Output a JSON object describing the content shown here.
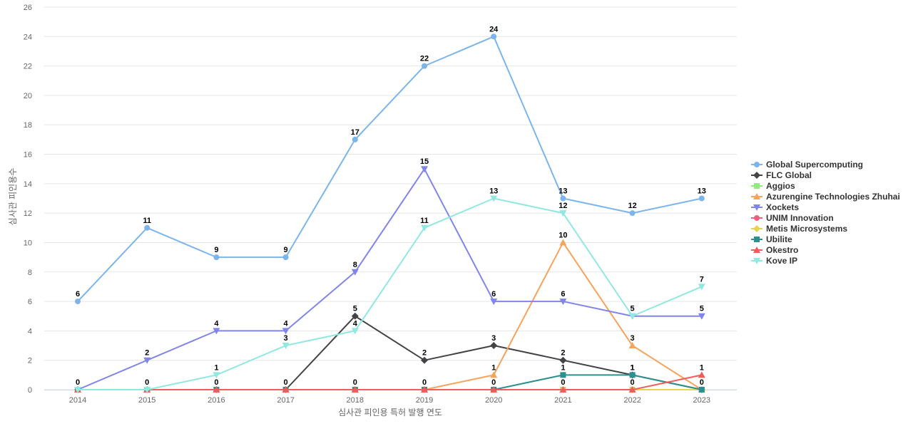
{
  "chart_data": {
    "type": "line",
    "title": "",
    "xlabel": "심사관 피인용 특허 발행 연도",
    "ylabel": "심사관 피인용수",
    "categories": [
      "2014",
      "2015",
      "2016",
      "2017",
      "2018",
      "2019",
      "2020",
      "2021",
      "2022",
      "2023"
    ],
    "ylim": [
      0,
      26
    ],
    "yticks": [
      0,
      2,
      4,
      6,
      8,
      10,
      12,
      14,
      16,
      18,
      20,
      22,
      24,
      26
    ],
    "grid": true,
    "legend_position": "right",
    "series": [
      {
        "name": "Global Supercomputing",
        "color": "#7cb5ec",
        "marker": "circle",
        "values": [
          6,
          11,
          9,
          9,
          17,
          22,
          24,
          13,
          12,
          13
        ]
      },
      {
        "name": "FLC Global",
        "color": "#434348",
        "marker": "diamond",
        "values": [
          0,
          0,
          0,
          0,
          5,
          2,
          3,
          2,
          1,
          0
        ]
      },
      {
        "name": "Aggios",
        "color": "#90ed7d",
        "marker": "square",
        "values": [
          0,
          0,
          0,
          0,
          0,
          0,
          0,
          0,
          0,
          0
        ]
      },
      {
        "name": "Azurengine Technologies Zhuhai",
        "color": "#f7a35c",
        "marker": "triangle",
        "values": [
          0,
          0,
          0,
          0,
          0,
          0,
          1,
          10,
          3,
          0
        ]
      },
      {
        "name": "Xockets",
        "color": "#8085e9",
        "marker": "triangle-down",
        "values": [
          0,
          2,
          4,
          4,
          8,
          15,
          6,
          6,
          5,
          5
        ]
      },
      {
        "name": "UNIM Innovation",
        "color": "#f15c80",
        "marker": "circle",
        "values": [
          0,
          0,
          0,
          0,
          0,
          0,
          0,
          0,
          0,
          0
        ]
      },
      {
        "name": "Metis Microsystems",
        "color": "#e4d354",
        "marker": "diamond",
        "values": [
          0,
          0,
          0,
          0,
          0,
          0,
          0,
          0,
          0,
          0
        ]
      },
      {
        "name": "Ubilite",
        "color": "#2b908f",
        "marker": "square",
        "values": [
          0,
          0,
          0,
          0,
          0,
          0,
          0,
          1,
          1,
          0
        ]
      },
      {
        "name": "Okestro",
        "color": "#f45b5b",
        "marker": "triangle",
        "values": [
          0,
          0,
          0,
          0,
          0,
          0,
          0,
          0,
          0,
          1
        ]
      },
      {
        "name": "Kove IP",
        "color": "#91e8e1",
        "marker": "triangle-down",
        "values": [
          0,
          0,
          1,
          3,
          4,
          11,
          13,
          12,
          5,
          7
        ]
      }
    ],
    "data_labels": [
      {
        "series": "Global Supercomputing",
        "values": [
          6,
          11,
          9,
          9,
          17,
          22,
          24,
          13,
          12,
          13
        ]
      },
      {
        "series": "Xockets",
        "values": [
          0,
          2,
          4,
          4,
          8,
          15,
          6,
          6,
          5,
          5
        ]
      },
      {
        "series": "Kove IP",
        "values": [
          null,
          null,
          1,
          3,
          4,
          11,
          13,
          12,
          null,
          7
        ]
      },
      {
        "series": "FLC Global",
        "values": [
          null,
          null,
          null,
          null,
          5,
          2,
          3,
          2,
          1,
          null
        ]
      },
      {
        "series": "Azurengine Technologies Zhuhai",
        "values": [
          null,
          null,
          null,
          null,
          null,
          null,
          1,
          10,
          3,
          null
        ]
      },
      {
        "series": "Ubilite",
        "values": [
          null,
          null,
          null,
          null,
          null,
          null,
          null,
          1,
          1,
          null
        ]
      },
      {
        "series": "Okestro",
        "values": [
          null,
          null,
          null,
          null,
          null,
          null,
          null,
          null,
          null,
          1
        ]
      },
      {
        "series": "UNIM Innovation",
        "values": [
          null,
          0,
          0,
          0,
          0,
          0,
          0,
          0,
          0,
          0
        ]
      }
    ]
  }
}
